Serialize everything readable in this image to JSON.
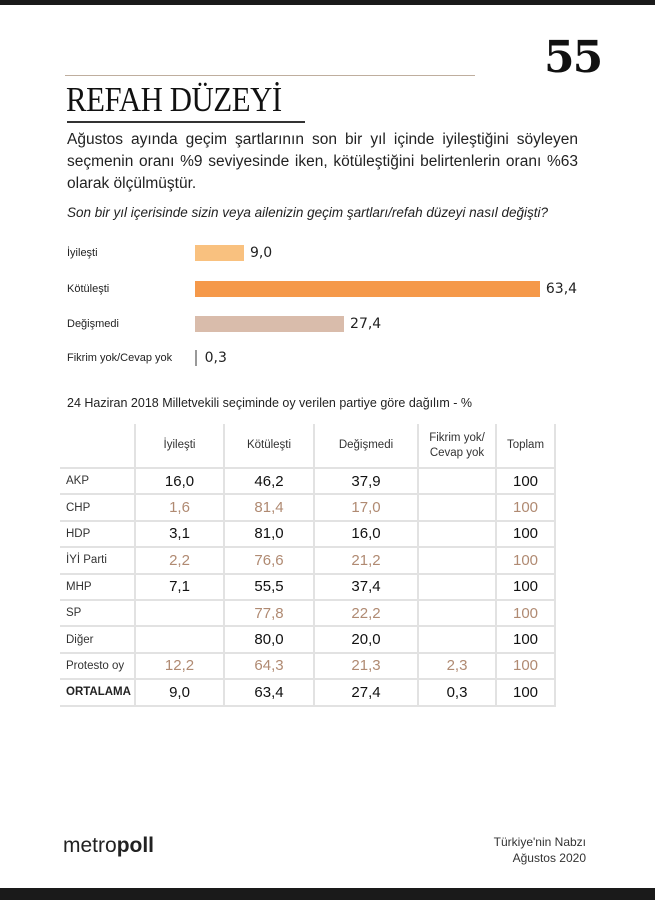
{
  "page_number": "55",
  "title": "REFAH DÜZEYİ",
  "paragraph": "Ağustos ayında geçim şartlarının son bir yıl içinde iyileştiğini söyleyen seçmenin oranı %9 seviyesinde iken, kötüleştiğini belirtenlerin oranı %63 olarak ölçülmüştür.",
  "question": "Son bir yıl içerisinde sizin veya ailenizin geçim şartları/refah düzeyi nasıl değişti?",
  "chart_data": {
    "type": "bar",
    "orientation": "horizontal",
    "categories": [
      "İyileşti",
      "Kötüleşti",
      "Değişmedi",
      "Fikrim yok/Cevap yok"
    ],
    "values": [
      9.0,
      63.4,
      27.4,
      0.3
    ],
    "labels": [
      "9,0",
      "63,4",
      "27,4",
      "0,3"
    ],
    "colors": [
      "#f9c17f",
      "#f5994a",
      "#d9bcab",
      "#999999"
    ]
  },
  "table": {
    "caption": "24 Haziran 2018 Milletvekili seçiminde oy verilen partiye göre dağılım - %",
    "headers": [
      "",
      "İyileşti",
      "Kötüleşti",
      "Değişmedi",
      "Fikrim yok/ Cevap yok",
      "Toplam"
    ],
    "rows": [
      [
        "AKP",
        "16,0",
        "46,2",
        "37,9",
        "",
        "100"
      ],
      [
        "CHP",
        "1,6",
        "81,4",
        "17,0",
        "",
        "100"
      ],
      [
        "HDP",
        "3,1",
        "81,0",
        "16,0",
        "",
        "100"
      ],
      [
        "İYİ Parti",
        "2,2",
        "76,6",
        "21,2",
        "",
        "100"
      ],
      [
        "MHP",
        "7,1",
        "55,5",
        "37,4",
        "",
        "100"
      ],
      [
        "SP",
        "",
        "77,8",
        "22,2",
        "",
        "100"
      ],
      [
        "Diğer",
        "",
        "80,0",
        "20,0",
        "",
        "100"
      ],
      [
        "Protesto oy",
        "12,2",
        "64,3",
        "21,3",
        "2,3",
        "100"
      ],
      [
        "ORTALAMA",
        "9,0",
        "63,4",
        "27,4",
        "0,3",
        "100"
      ]
    ],
    "alt_row_color": "#b08a72"
  },
  "footer": {
    "logo_part1": "metro",
    "logo_part2": "poll",
    "source_line1": "Türkiye'nin Nabzı",
    "source_line2": "Ağustos 2020"
  }
}
